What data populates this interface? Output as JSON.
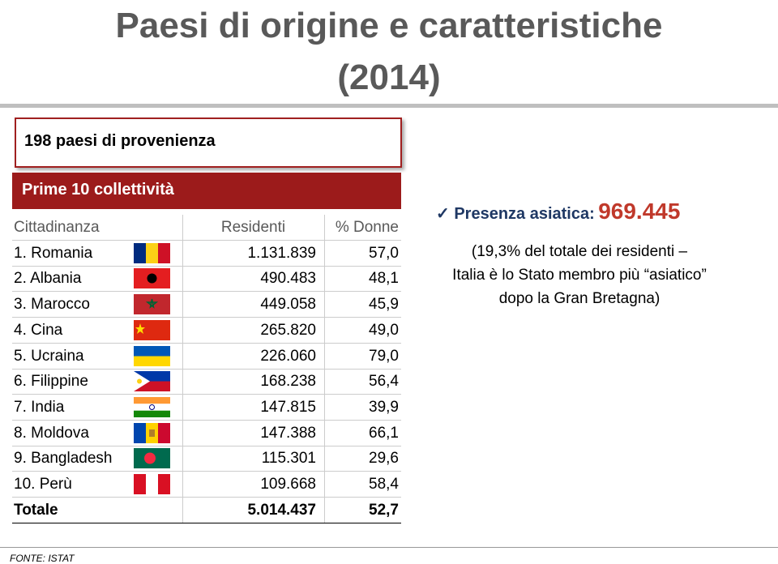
{
  "header": {
    "title_lines": [
      "Paesi di origine e caratteristiche",
      "(2014)"
    ]
  },
  "box": {
    "text": "198 paesi di provenienza"
  },
  "table": {
    "caption": "Prime 10 collettività",
    "columns": [
      "Cittadinanza",
      "Residenti",
      "% Donne"
    ],
    "rows": [
      [
        "1. Romania",
        "1.131.839",
        "57,0"
      ],
      [
        "2. Albania",
        "490.483",
        "48,1"
      ],
      [
        "3. Marocco",
        "449.058",
        "45,9"
      ],
      [
        "4. Cina",
        "265.820",
        "49,0"
      ],
      [
        "5. Ucraina",
        "226.060",
        "79,0"
      ],
      [
        "6. Filippine",
        "168.238",
        "56,4"
      ],
      [
        "7. India",
        "147.815",
        "39,9"
      ],
      [
        "8. Moldova",
        "147.388",
        "66,1"
      ],
      [
        "9. Bangladesh",
        "115.301",
        "29,6"
      ],
      [
        "10. Perù",
        "109.668",
        "58,4"
      ]
    ],
    "total": [
      "Totale",
      "5.014.437",
      "52,7"
    ]
  },
  "side": {
    "label": "Presenza asiatica:",
    "value": "969.445",
    "note_lines": [
      "(19,3% del totale dei residenti –",
      "Italia è lo Stato membro più “asiatico”",
      "dopo la Gran Bretagna)"
    ]
  },
  "footer": {
    "source": "FONTE: ISTAT"
  }
}
